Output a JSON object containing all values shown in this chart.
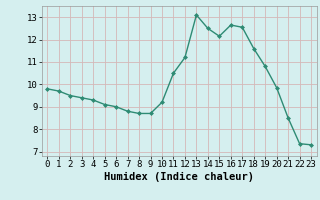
{
  "x": [
    0,
    1,
    2,
    3,
    4,
    5,
    6,
    7,
    8,
    9,
    10,
    11,
    12,
    13,
    14,
    15,
    16,
    17,
    18,
    19,
    20,
    21,
    22,
    23
  ],
  "y": [
    9.8,
    9.7,
    9.5,
    9.4,
    9.3,
    9.1,
    9.0,
    8.8,
    8.7,
    8.7,
    9.2,
    10.5,
    11.2,
    13.1,
    12.5,
    12.15,
    12.65,
    12.55,
    11.6,
    10.8,
    9.85,
    8.5,
    7.35,
    7.3
  ],
  "line_color": "#2e8b74",
  "marker": "D",
  "marker_size": 2.0,
  "bg_color": "#d5efef",
  "grid_color": "#c0dede",
  "grid_major_color": "#b8d4d4",
  "xlabel": "Humidex (Indice chaleur)",
  "xlabel_fontsize": 7.5,
  "xlim": [
    -0.5,
    23.5
  ],
  "ylim": [
    6.8,
    13.5
  ],
  "yticks": [
    7,
    8,
    9,
    10,
    11,
    12,
    13
  ],
  "xticks": [
    0,
    1,
    2,
    3,
    4,
    5,
    6,
    7,
    8,
    9,
    10,
    11,
    12,
    13,
    14,
    15,
    16,
    17,
    18,
    19,
    20,
    21,
    22,
    23
  ],
  "tick_fontsize": 6.5,
  "xlabel_fontsize_mono": 7.5,
  "line_width": 1.0
}
